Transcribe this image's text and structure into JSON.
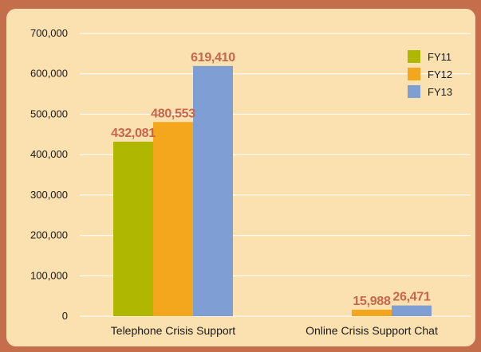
{
  "chart_data": {
    "type": "bar",
    "categories": [
      "Telephone Crisis Support",
      "Online Crisis Support Chat"
    ],
    "series": [
      {
        "name": "FY11",
        "values": [
          432081,
          null
        ],
        "color": "#afb700"
      },
      {
        "name": "FY12",
        "values": [
          480553,
          15988
        ],
        "color": "#f4a61c"
      },
      {
        "name": "FY13",
        "values": [
          619410,
          26471
        ],
        "color": "#7f9fd4"
      }
    ],
    "value_labels": [
      [
        "432,081",
        null
      ],
      [
        "480,553",
        "15,988"
      ],
      [
        "619,410",
        "26,471"
      ]
    ],
    "y_ticks": [
      0,
      100000,
      200000,
      300000,
      400000,
      500000,
      600000,
      700000
    ],
    "y_tick_labels": [
      "0",
      "100,000",
      "200,000",
      "300,000",
      "400,000",
      "500,000",
      "600,000",
      "700,000"
    ],
    "ylim": [
      0,
      700000
    ],
    "grid": true,
    "legend_position": "top-right",
    "colors": {
      "background": "#c46e4c",
      "panel": "#fbe0b0",
      "gridline": "#ffffff",
      "value_label": "#c8664a"
    }
  }
}
